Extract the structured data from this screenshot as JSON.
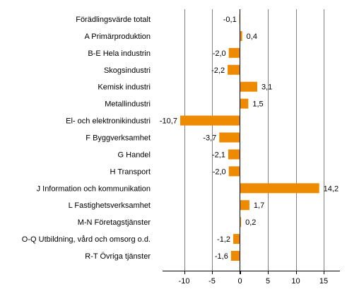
{
  "chart_data": {
    "type": "bar",
    "orientation": "horizontal",
    "title": "",
    "xlabel": "",
    "ylabel": "",
    "categories": [
      "Förädlingsvärde totalt",
      "A Primärproduktion",
      "B-E Hela industrin",
      "Skogsindustri",
      "Kemisk industri",
      "Metallindustri",
      "El- och elektronikindustri",
      "F Byggverksamhet",
      "G Handel",
      "H Transport",
      "J Information och kommunikation",
      "L Fastighetsverksamhet",
      "M-N Företagstjänster",
      "O-Q Utbildning, vård och omsorg o.d.",
      "R-T Övriga tjänster"
    ],
    "values": [
      -0.1,
      0.4,
      -2.0,
      -2.2,
      3.1,
      1.5,
      -10.7,
      -3.7,
      -2.1,
      -2.0,
      14.2,
      1.7,
      0.2,
      -1.2,
      -1.6
    ],
    "value_labels": [
      "-0,1",
      "0,4",
      "-2,0",
      "-2,2",
      "3,1",
      "1,5",
      "-10,7",
      "-3,7",
      "-2,1",
      "-2,0",
      "14,2",
      "1,7",
      "0,2",
      "-1,2",
      "-1,6"
    ],
    "xlim": [
      -15,
      18
    ],
    "xticks": [
      -10,
      -5,
      0,
      5,
      10,
      15
    ],
    "xtick_labels": [
      "-10",
      "-5",
      "0",
      "5",
      "10",
      "15"
    ],
    "grid": "vertical",
    "legend": "none",
    "bar_color": "#ed8a00",
    "grid_color": "#808080",
    "axis_color": "#000000"
  }
}
